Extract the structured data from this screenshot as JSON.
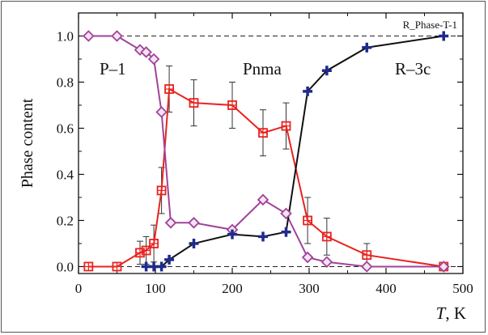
{
  "chart_data": {
    "type": "scatter",
    "title": "",
    "xlabel": "T, K",
    "xlabel_italic": "T",
    "xlabel_unit": ", K",
    "ylabel": "Phase content",
    "xlim": [
      0,
      500
    ],
    "ylim": [
      -0.03,
      1.1
    ],
    "x_ticks": [
      0,
      100,
      200,
      300,
      400,
      500
    ],
    "x_tick_labels": [
      "0",
      "100",
      "200",
      "300",
      "400",
      "500"
    ],
    "y_ticks": [
      0.0,
      0.2,
      0.4,
      0.6,
      0.8,
      1.0
    ],
    "y_tick_labels": [
      "0.0",
      "0.2",
      "0.4",
      "0.6",
      "0.8",
      "1.0"
    ],
    "reference_lines": [
      0.0,
      1.0
    ],
    "annotations": {
      "corner_label": "R_Phase-T-1",
      "phase_p1": "P–1",
      "phase_pnma": "Pnma",
      "phase_r3c": "R–3c"
    },
    "colors": {
      "pnma": "#e8231f",
      "p1": "#a0439a",
      "r3c": "#1f2a8c",
      "r3c_line": "#111111",
      "errorbar": "#333333",
      "reference": "#222222"
    },
    "series": [
      {
        "key": "pnma",
        "marker": "square-cross",
        "x": [
          13,
          50,
          80,
          88,
          98,
          108,
          118,
          150,
          200,
          240,
          270,
          298,
          323,
          375,
          475
        ],
        "y": [
          0.0,
          0.0,
          0.06,
          0.07,
          0.1,
          0.33,
          0.77,
          0.71,
          0.7,
          0.58,
          0.61,
          0.2,
          0.13,
          0.05,
          0.0
        ],
        "err": [
          0,
          0,
          0.05,
          0.06,
          0.08,
          0.1,
          0.1,
          0.1,
          0.1,
          0.1,
          0.1,
          0.1,
          0.08,
          0.05,
          0
        ]
      },
      {
        "key": "p1",
        "marker": "diamond",
        "x": [
          13,
          50,
          80,
          88,
          98,
          108,
          120,
          150,
          200,
          240,
          270,
          298,
          323,
          375,
          475
        ],
        "y": [
          1.0,
          1.0,
          0.94,
          0.93,
          0.9,
          0.67,
          0.19,
          0.19,
          0.16,
          0.29,
          0.23,
          0.04,
          0.02,
          0.0,
          0.0
        ]
      },
      {
        "key": "r3c",
        "marker": "plus",
        "x": [
          88,
          98,
          108,
          118,
          150,
          200,
          240,
          270,
          298,
          323,
          375,
          475
        ],
        "y": [
          0.0,
          0.0,
          0.0,
          0.03,
          0.1,
          0.14,
          0.13,
          0.15,
          0.76,
          0.85,
          0.95,
          1.0
        ]
      }
    ]
  }
}
